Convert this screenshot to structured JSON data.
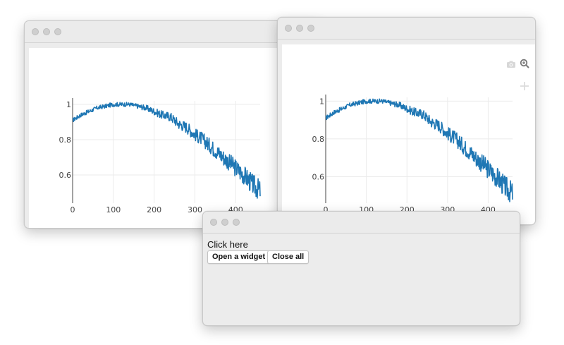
{
  "windows": {
    "left_chart": {},
    "right_chart": {
      "modebar": [
        "camera-icon",
        "zoom-icon",
        "pan-icon"
      ]
    },
    "control": {
      "label": "Click here",
      "open_button": "Open a widget",
      "close_button": "Close all"
    }
  },
  "chart_data": [
    {
      "type": "line",
      "title": "",
      "xlabel": "",
      "ylabel": "",
      "xlim": [
        0,
        460
      ],
      "ylim": [
        0.44,
        1.02
      ],
      "x_ticks": [
        "0",
        "100",
        "200",
        "300",
        "400"
      ],
      "y_ticks": [
        "0.6",
        "0.8",
        "1"
      ],
      "x_tick_values": [
        0,
        100,
        200,
        300,
        400
      ],
      "y_tick_values": [
        0.6,
        0.8,
        1.0
      ],
      "grid": true,
      "color": "#1f77b4",
      "series": [
        {
          "x": [
            0,
            20,
            40,
            60,
            80,
            100,
            120,
            140,
            160,
            180,
            200,
            220,
            240,
            260,
            280,
            300,
            320,
            340,
            360,
            380,
            400,
            420,
            440,
            460
          ],
          "values": [
            0.91,
            0.94,
            0.96,
            0.98,
            0.99,
            1.0,
            1.0,
            1.0,
            0.99,
            0.98,
            0.96,
            0.94,
            0.93,
            0.89,
            0.87,
            0.83,
            0.8,
            0.76,
            0.72,
            0.68,
            0.64,
            0.6,
            0.55,
            0.51
          ]
        }
      ]
    },
    {
      "type": "line",
      "title": "",
      "xlabel": "",
      "ylabel": "",
      "xlim": [
        0,
        460
      ],
      "ylim": [
        0.46,
        1.02
      ],
      "x_ticks": [
        "0",
        "100",
        "200",
        "300",
        "400"
      ],
      "y_ticks": [
        "0.6",
        "0.8",
        "1"
      ],
      "x_tick_values": [
        0,
        100,
        200,
        300,
        400
      ],
      "y_tick_values": [
        0.6,
        0.8,
        1.0
      ],
      "grid": true,
      "color": "#1f77b4",
      "series": [
        {
          "x": [
            0,
            20,
            40,
            60,
            80,
            100,
            120,
            140,
            160,
            180,
            200,
            220,
            240,
            260,
            280,
            300,
            320,
            340,
            360,
            380,
            400,
            420,
            440,
            460
          ],
          "values": [
            0.91,
            0.94,
            0.96,
            0.98,
            0.99,
            1.0,
            1.0,
            1.0,
            0.99,
            0.98,
            0.96,
            0.94,
            0.93,
            0.89,
            0.87,
            0.83,
            0.8,
            0.76,
            0.72,
            0.68,
            0.64,
            0.6,
            0.55,
            0.51
          ]
        }
      ]
    }
  ]
}
